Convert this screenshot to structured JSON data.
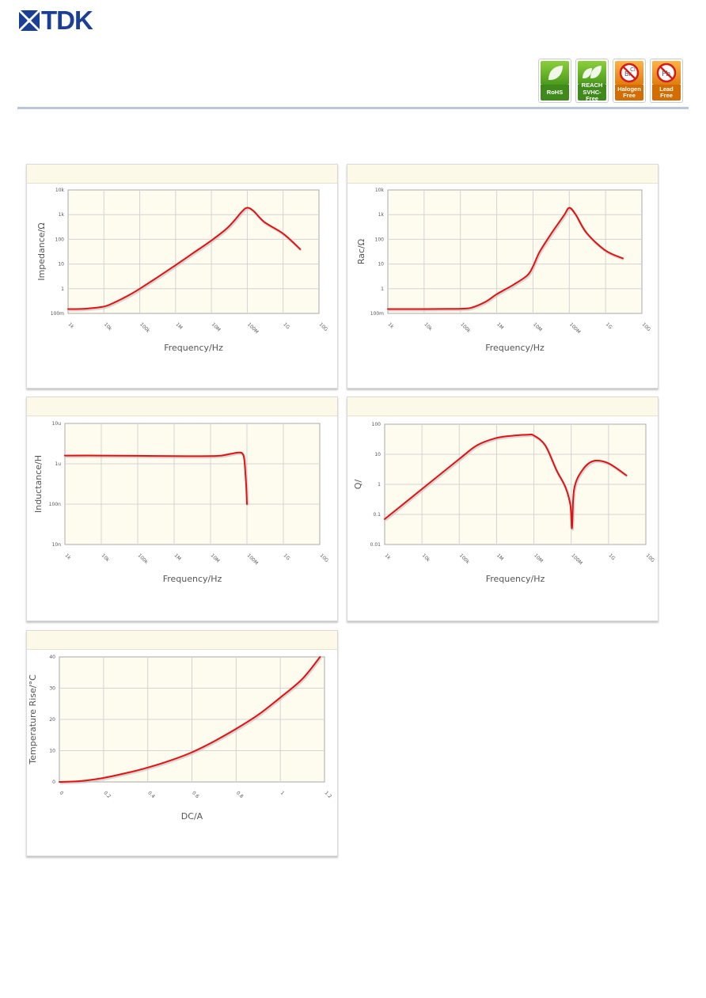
{
  "header": {
    "logo_text": "TDK",
    "badges": [
      {
        "lines": [
          "RoHS"
        ],
        "color": "#4a9a1a"
      },
      {
        "lines": [
          "REACH",
          "SVHC-Free"
        ],
        "color": "#4a9a1a"
      },
      {
        "lines": [
          "Halogen",
          "Free"
        ],
        "color": "#e07d10"
      },
      {
        "lines": [
          "Lead",
          "Free"
        ],
        "color": "#e07d10"
      }
    ],
    "accent_color": "#1a3f95"
  },
  "chart_data": [
    {
      "type": "line",
      "title": "",
      "xlabel": "Frequency/Hz",
      "ylabel": "Impedance/Ω",
      "x_scale": "log",
      "y_scale": "log",
      "xlim": [
        1000,
        10000000000
      ],
      "ylim": [
        0.1,
        10000
      ],
      "x_ticks": [
        1000,
        10000,
        100000,
        1000000,
        10000000,
        100000000,
        1000000000,
        10000000000
      ],
      "x_tick_labels": [
        "1k",
        "10k",
        "100k",
        "1M",
        "10M",
        "100M",
        "1G",
        "10G"
      ],
      "y_ticks": [
        0.1,
        1,
        10,
        100,
        1000,
        10000
      ],
      "y_tick_labels": [
        "100m",
        "1",
        "10",
        "100",
        "1k",
        "10k"
      ],
      "series": [
        {
          "color": "#e31212",
          "x": [
            1000,
            3000,
            10000,
            20000,
            50000,
            100000,
            300000,
            1000000,
            3000000,
            10000000,
            30000000,
            70000000,
            100000000,
            150000000,
            300000000,
            1000000000,
            3000000000
          ],
          "y": [
            0.15,
            0.155,
            0.19,
            0.28,
            0.55,
            1.0,
            2.8,
            9,
            27,
            90,
            320,
            1300,
            1900,
            1400,
            500,
            170,
            40
          ]
        }
      ]
    },
    {
      "type": "line",
      "title": "",
      "xlabel": "Frequency/Hz",
      "ylabel": "Rac/Ω",
      "x_scale": "log",
      "y_scale": "log",
      "xlim": [
        1000,
        10000000000
      ],
      "ylim": [
        0.1,
        10000
      ],
      "x_ticks": [
        1000,
        10000,
        100000,
        1000000,
        10000000,
        100000000,
        1000000000,
        10000000000
      ],
      "x_tick_labels": [
        "1k",
        "10k",
        "100k",
        "1M",
        "10M",
        "100M",
        "1G",
        "10G"
      ],
      "y_ticks": [
        0.1,
        1,
        10,
        100,
        1000,
        10000
      ],
      "y_tick_labels": [
        "100m",
        "1",
        "10",
        "100",
        "1k",
        "10k"
      ],
      "series": [
        {
          "color": "#e31212",
          "x": [
            1000,
            10000,
            50000,
            100000,
            200000,
            500000,
            1000000,
            3000000,
            7000000,
            10000000,
            15000000,
            30000000,
            70000000,
            100000000,
            150000000,
            300000000,
            1000000000,
            3000000000
          ],
          "y": [
            0.15,
            0.15,
            0.152,
            0.155,
            0.17,
            0.3,
            0.6,
            1.5,
            3.5,
            8,
            30,
            150,
            900,
            1900,
            1000,
            180,
            35,
            17
          ]
        }
      ]
    },
    {
      "type": "line",
      "title": "",
      "xlabel": "Frequency/Hz",
      "ylabel": "Inductance/H",
      "x_scale": "log",
      "y_scale": "log",
      "xlim": [
        1000,
        10000000000
      ],
      "ylim": [
        1e-08,
        1e-05
      ],
      "x_ticks": [
        1000,
        10000,
        100000,
        1000000,
        10000000,
        100000000,
        1000000000,
        10000000000
      ],
      "x_tick_labels": [
        "1k",
        "10k",
        "100k",
        "1M",
        "10M",
        "100M",
        "1G",
        "10G"
      ],
      "y_ticks": [
        1e-08,
        1e-07,
        1e-06,
        1e-05
      ],
      "y_tick_labels": [
        "10n",
        "100n",
        "1u",
        "10u"
      ],
      "series": [
        {
          "color": "#e31212",
          "x": [
            1000,
            10000,
            100000,
            1000000,
            10000000,
            20000000,
            40000000,
            60000000,
            75000000,
            85000000,
            95000000,
            100000000
          ],
          "y": [
            1.6e-06,
            1.6e-06,
            1.58e-06,
            1.55e-06,
            1.55e-06,
            1.6e-06,
            1.8e-06,
            1.9e-06,
            1.8e-06,
            1.2e-06,
            3e-07,
            1e-07
          ]
        }
      ]
    },
    {
      "type": "line",
      "title": "",
      "xlabel": "Frequency/Hz",
      "ylabel": "Q/",
      "x_scale": "log",
      "y_scale": "log",
      "xlim": [
        1000,
        10000000000
      ],
      "ylim": [
        0.01,
        100
      ],
      "x_ticks": [
        1000,
        10000,
        100000,
        1000000,
        10000000,
        100000000,
        1000000000,
        10000000000
      ],
      "x_tick_labels": [
        "1k",
        "10k",
        "100k",
        "1M",
        "10M",
        "100M",
        "1G",
        "10G"
      ],
      "y_ticks": [
        0.01,
        0.1,
        1,
        10,
        100
      ],
      "y_tick_labels": [
        "0.01",
        "0.1",
        "1",
        "10",
        "100"
      ],
      "series": [
        {
          "color": "#e31212",
          "x": [
            1000,
            10000,
            100000,
            300000,
            1000000,
            3000000,
            7000000,
            10000000,
            20000000,
            40000000,
            70000000,
            95000000,
            105000000,
            120000000,
            200000000,
            400000000,
            1000000000,
            3000000000
          ],
          "y": [
            0.07,
            0.7,
            7,
            20,
            35,
            42,
            45,
            42,
            20,
            3,
            0.8,
            0.2,
            0.035,
            0.7,
            3,
            6,
            5,
            2
          ]
        }
      ]
    },
    {
      "type": "line",
      "title": "",
      "xlabel": "DC/A",
      "ylabel": "Temperature Rise/°C",
      "x_scale": "linear",
      "y_scale": "linear",
      "xlim": [
        0,
        1.2
      ],
      "ylim": [
        0,
        40
      ],
      "x_ticks": [
        0,
        0.2,
        0.4,
        0.6,
        0.8,
        1,
        1.2
      ],
      "x_tick_labels": [
        "0",
        "0.2",
        "0.4",
        "0.6",
        "0.8",
        "1",
        "1.2"
      ],
      "y_ticks": [
        0,
        10,
        20,
        30,
        40
      ],
      "y_tick_labels": [
        "0",
        "10",
        "20",
        "30",
        "40"
      ],
      "series": [
        {
          "color": "#e31212",
          "x": [
            0,
            0.1,
            0.2,
            0.3,
            0.4,
            0.5,
            0.6,
            0.7,
            0.8,
            0.9,
            1.0,
            1.1,
            1.18
          ],
          "y": [
            0,
            0.3,
            1.3,
            2.8,
            4.6,
            6.8,
            9.5,
            13,
            17,
            21.5,
            27,
            33,
            40
          ]
        }
      ]
    }
  ]
}
